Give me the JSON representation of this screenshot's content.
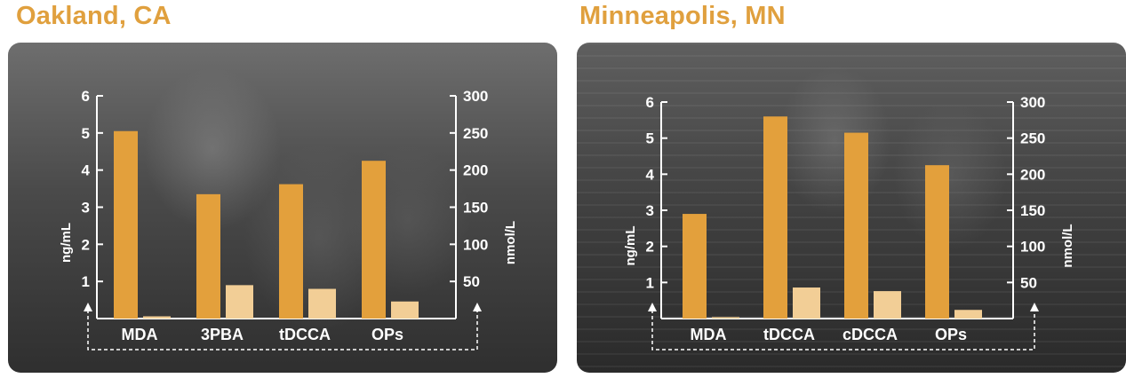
{
  "colors": {
    "title": "#E0A03E",
    "bar_ng": "#E3A03C",
    "bar_nmol": "#F2CE96",
    "axis": "#ffffff"
  },
  "chart_data": [
    {
      "type": "bar",
      "title": "Oakland, CA",
      "categories": [
        "MDA",
        "3PBA",
        "tDCCA",
        "OPs"
      ],
      "series": [
        {
          "axis": "left",
          "values": [
            5.05,
            3.35,
            3.62,
            4.25
          ]
        },
        {
          "axis": "right",
          "values": [
            3,
            45,
            40,
            23
          ]
        }
      ],
      "ylabel": "ng/mL",
      "ylabel_right": "nmol/L",
      "ylim": [
        0,
        6
      ],
      "ylim_right": [
        0,
        300
      ],
      "yticks": [
        "1",
        "2",
        "3",
        "4",
        "5",
        "6"
      ],
      "yticks_right": [
        "50",
        "100",
        "150",
        "200",
        "250",
        "300"
      ],
      "grid": false,
      "legend": "none"
    },
    {
      "type": "bar",
      "title": "Minneapolis, MN",
      "categories": [
        "MDA",
        "tDCCA",
        "cDCCA",
        "OPs"
      ],
      "series": [
        {
          "axis": "left",
          "values": [
            2.9,
            5.6,
            5.15,
            4.25
          ]
        },
        {
          "axis": "right",
          "values": [
            2,
            43,
            38,
            12
          ]
        }
      ],
      "ylabel": "ng/mL",
      "ylabel_right": "nmol/L",
      "ylim": [
        0,
        6
      ],
      "ylim_right": [
        0,
        300
      ],
      "yticks": [
        "1",
        "2",
        "3",
        "4",
        "5",
        "6"
      ],
      "yticks_right": [
        "50",
        "100",
        "150",
        "200",
        "250",
        "300"
      ],
      "grid": false,
      "legend": "none"
    }
  ]
}
